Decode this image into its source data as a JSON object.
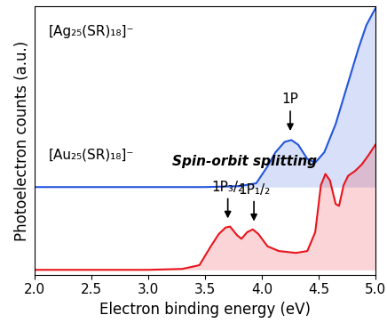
{
  "chart_data": {
    "type": "line",
    "x_label": "Electron binding energy (eV)",
    "y_label": "Photoelectron counts (a.u.)",
    "xlim": [
      2.0,
      5.0
    ],
    "xticks": [
      2.0,
      2.5,
      3.0,
      3.5,
      4.0,
      4.5,
      5.0
    ],
    "ylim": [
      -0.05,
      2.8
    ],
    "tick_labels": "x",
    "series": [
      {
        "name": "[Ag₂₅(SR)₁₈]⁻",
        "color": "#2255dd",
        "x": [
          2.0,
          3.5,
          3.8,
          3.95,
          4.05,
          4.12,
          4.2,
          4.26,
          4.32,
          4.4,
          4.47,
          4.55,
          4.65,
          4.75,
          4.85,
          4.92,
          5.0
        ],
        "values": [
          0.88,
          0.88,
          0.89,
          0.92,
          1.1,
          1.25,
          1.36,
          1.38,
          1.33,
          1.18,
          1.14,
          1.25,
          1.55,
          1.95,
          2.35,
          2.6,
          2.78
        ]
      },
      {
        "name": "[Au₂₅(SR)₁₈]⁻",
        "color": "#e8141c",
        "x": [
          2.0,
          3.0,
          3.3,
          3.45,
          3.55,
          3.62,
          3.68,
          3.72,
          3.78,
          3.82,
          3.87,
          3.92,
          3.97,
          4.05,
          4.15,
          4.3,
          4.4,
          4.47,
          4.52,
          4.56,
          4.6,
          4.65,
          4.68,
          4.72,
          4.76,
          4.82,
          4.88,
          4.94,
          5.0
        ],
        "values": [
          0.0,
          0.0,
          0.01,
          0.05,
          0.25,
          0.38,
          0.45,
          0.46,
          0.37,
          0.33,
          0.4,
          0.43,
          0.38,
          0.25,
          0.2,
          0.18,
          0.2,
          0.4,
          0.9,
          1.02,
          0.95,
          0.7,
          0.68,
          0.9,
          1.0,
          1.05,
          1.12,
          1.22,
          1.33
        ]
      }
    ],
    "annotations": [
      {
        "text": "1P",
        "x": 4.25,
        "y": 1.45
      },
      {
        "text": "1P₃/₂",
        "x": 3.7,
        "y": 0.52
      },
      {
        "text": "1P₁/₂",
        "x": 3.93,
        "y": 0.49
      }
    ],
    "notes": [
      {
        "text": "Spin-orbit splitting",
        "x": 3.85,
        "y": 1.08
      }
    ]
  }
}
